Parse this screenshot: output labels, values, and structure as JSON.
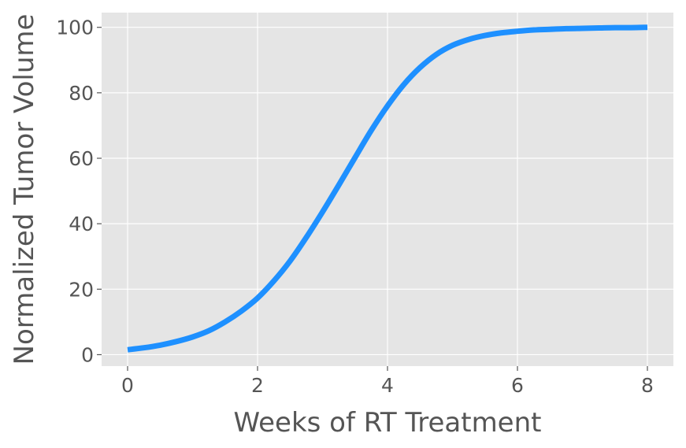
{
  "chart_data": {
    "type": "line",
    "xlabel": "Weeks of RT Treatment",
    "ylabel": "Normalized Tumor Volume",
    "xlim": [
      -0.4,
      8.4
    ],
    "ylim": [
      -3.5,
      104.5
    ],
    "xticks": [
      0,
      2,
      4,
      6,
      8
    ],
    "yticks": [
      0,
      20,
      40,
      60,
      80,
      100
    ],
    "xtick_labels": [
      "0",
      "2",
      "4",
      "6",
      "8"
    ],
    "ytick_labels": [
      "0",
      "20",
      "40",
      "60",
      "80",
      "100"
    ],
    "grid": true,
    "style": {
      "background": "#e5e5e5",
      "grid_color": "#ffffff",
      "line_color": "#1e90ff",
      "text_color": "#555555"
    },
    "series": [
      {
        "x": [
          0,
          0.25,
          0.5,
          0.75,
          1.0,
          1.25,
          1.5,
          1.75,
          2.0,
          2.25,
          2.5,
          2.75,
          3.0,
          3.25,
          3.5,
          3.75,
          4.0,
          4.25,
          4.5,
          4.75,
          5.0,
          5.25,
          5.5,
          5.75,
          6.0,
          6.25,
          6.5,
          6.75,
          7.0,
          7.25,
          7.5,
          7.75,
          8.0
        ],
        "y": [
          1.5,
          2.1,
          2.9,
          4.0,
          5.4,
          7.3,
          10.0,
          13.3,
          17.3,
          22.5,
          28.6,
          35.8,
          43.6,
          51.8,
          60.2,
          68.5,
          76.0,
          82.5,
          87.7,
          91.7,
          94.5,
          96.3,
          97.5,
          98.3,
          98.8,
          99.2,
          99.4,
          99.6,
          99.7,
          99.8,
          99.9,
          99.9,
          100.0
        ]
      }
    ]
  }
}
